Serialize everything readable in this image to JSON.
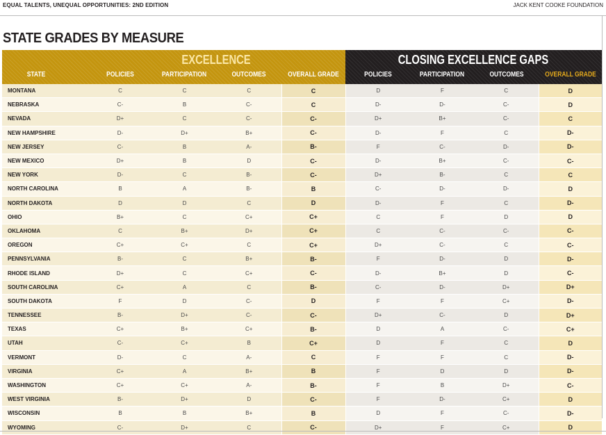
{
  "header": {
    "publication": "EQUAL TALENTS, UNEQUAL OPPORTUNITIES: 2ND EDITION",
    "organization": "JACK KENT COOKE FOUNDATION"
  },
  "title": "STATE GRADES BY MEASURE",
  "groups": {
    "excellence": "EXCELLENCE",
    "gaps": "CLOSING EXCELLENCE GAPS"
  },
  "columns": {
    "state": "STATE",
    "ex_policies": "POLICIES",
    "ex_participation": "PARTICIPATION",
    "ex_outcomes": "OUTCOMES",
    "ex_overall": "OVERALL GRADE",
    "gap_policies": "POLICIES",
    "gap_participation": "PARTICIPATION",
    "gap_outcomes": "OUTCOMES",
    "gap_overall": "OVERALL GRADE"
  },
  "colors": {
    "gold": "#c4950f",
    "dark": "#231f20",
    "gold_text": "#e5aa1c"
  },
  "rows": [
    [
      "MONTANA",
      "C",
      "C",
      "C",
      "C",
      "D",
      "F",
      "C",
      "D"
    ],
    [
      "NEBRASKA",
      "C-",
      "B",
      "C-",
      "C",
      "D-",
      "D-",
      "C-",
      "D"
    ],
    [
      "NEVADA",
      "D+",
      "C",
      "C-",
      "C-",
      "D+",
      "B+",
      "C-",
      "C"
    ],
    [
      "NEW HAMPSHIRE",
      "D-",
      "D+",
      "B+",
      "C-",
      "D-",
      "F",
      "C",
      "D-"
    ],
    [
      "NEW JERSEY",
      "C-",
      "B",
      "A-",
      "B-",
      "F",
      "C-",
      "D-",
      "D-"
    ],
    [
      "NEW MEXICO",
      "D+",
      "B",
      "D",
      "C-",
      "D-",
      "B+",
      "C-",
      "C-"
    ],
    [
      "NEW YORK",
      "D-",
      "C",
      "B-",
      "C-",
      "D+",
      "B-",
      "C",
      "C"
    ],
    [
      "NORTH CAROLINA",
      "B",
      "A",
      "B-",
      "B",
      "C-",
      "D-",
      "D-",
      "D"
    ],
    [
      "NORTH DAKOTA",
      "D",
      "D",
      "C",
      "D",
      "D-",
      "F",
      "C",
      "D-"
    ],
    [
      "OHIO",
      "B+",
      "C",
      "C+",
      "C+",
      "C",
      "F",
      "D",
      "D"
    ],
    [
      "OKLAHOMA",
      "C",
      "B+",
      "D+",
      "C+",
      "C",
      "C-",
      "C-",
      "C-"
    ],
    [
      "OREGON",
      "C+",
      "C+",
      "C",
      "C+",
      "D+",
      "C-",
      "C",
      "C-"
    ],
    [
      "PENNSYLVANIA",
      "B-",
      "C",
      "B+",
      "B-",
      "F",
      "D-",
      "D",
      "D-"
    ],
    [
      "RHODE ISLAND",
      "D+",
      "C",
      "C+",
      "C-",
      "D-",
      "B+",
      "D",
      "C-"
    ],
    [
      "SOUTH CAROLINA",
      "C+",
      "A",
      "C",
      "B-",
      "C-",
      "D-",
      "D+",
      "D+"
    ],
    [
      "SOUTH DAKOTA",
      "F",
      "D",
      "C-",
      "D",
      "F",
      "F",
      "C+",
      "D-"
    ],
    [
      "TENNESSEE",
      "B-",
      "D+",
      "C-",
      "C-",
      "D+",
      "C-",
      "D",
      "D+"
    ],
    [
      "TEXAS",
      "C+",
      "B+",
      "C+",
      "B-",
      "D",
      "A",
      "C-",
      "C+"
    ],
    [
      "UTAH",
      "C-",
      "C+",
      "B",
      "C+",
      "D",
      "F",
      "C",
      "D"
    ],
    [
      "VERMONT",
      "D-",
      "C",
      "A-",
      "C",
      "F",
      "F",
      "C",
      "D-"
    ],
    [
      "VIRGINIA",
      "C+",
      "A",
      "B+",
      "B",
      "F",
      "D",
      "D",
      "D-"
    ],
    [
      "WASHINGTON",
      "C+",
      "C+",
      "A-",
      "B-",
      "F",
      "B",
      "D+",
      "C-"
    ],
    [
      "WEST VIRGINIA",
      "B-",
      "D+",
      "D",
      "C-",
      "F",
      "D-",
      "C+",
      "D"
    ],
    [
      "WISCONSIN",
      "B",
      "B",
      "B+",
      "B",
      "D",
      "F",
      "C-",
      "D-"
    ],
    [
      "WYOMING",
      "C-",
      "D+",
      "C",
      "C-",
      "D+",
      "F",
      "C+",
      "D"
    ]
  ]
}
